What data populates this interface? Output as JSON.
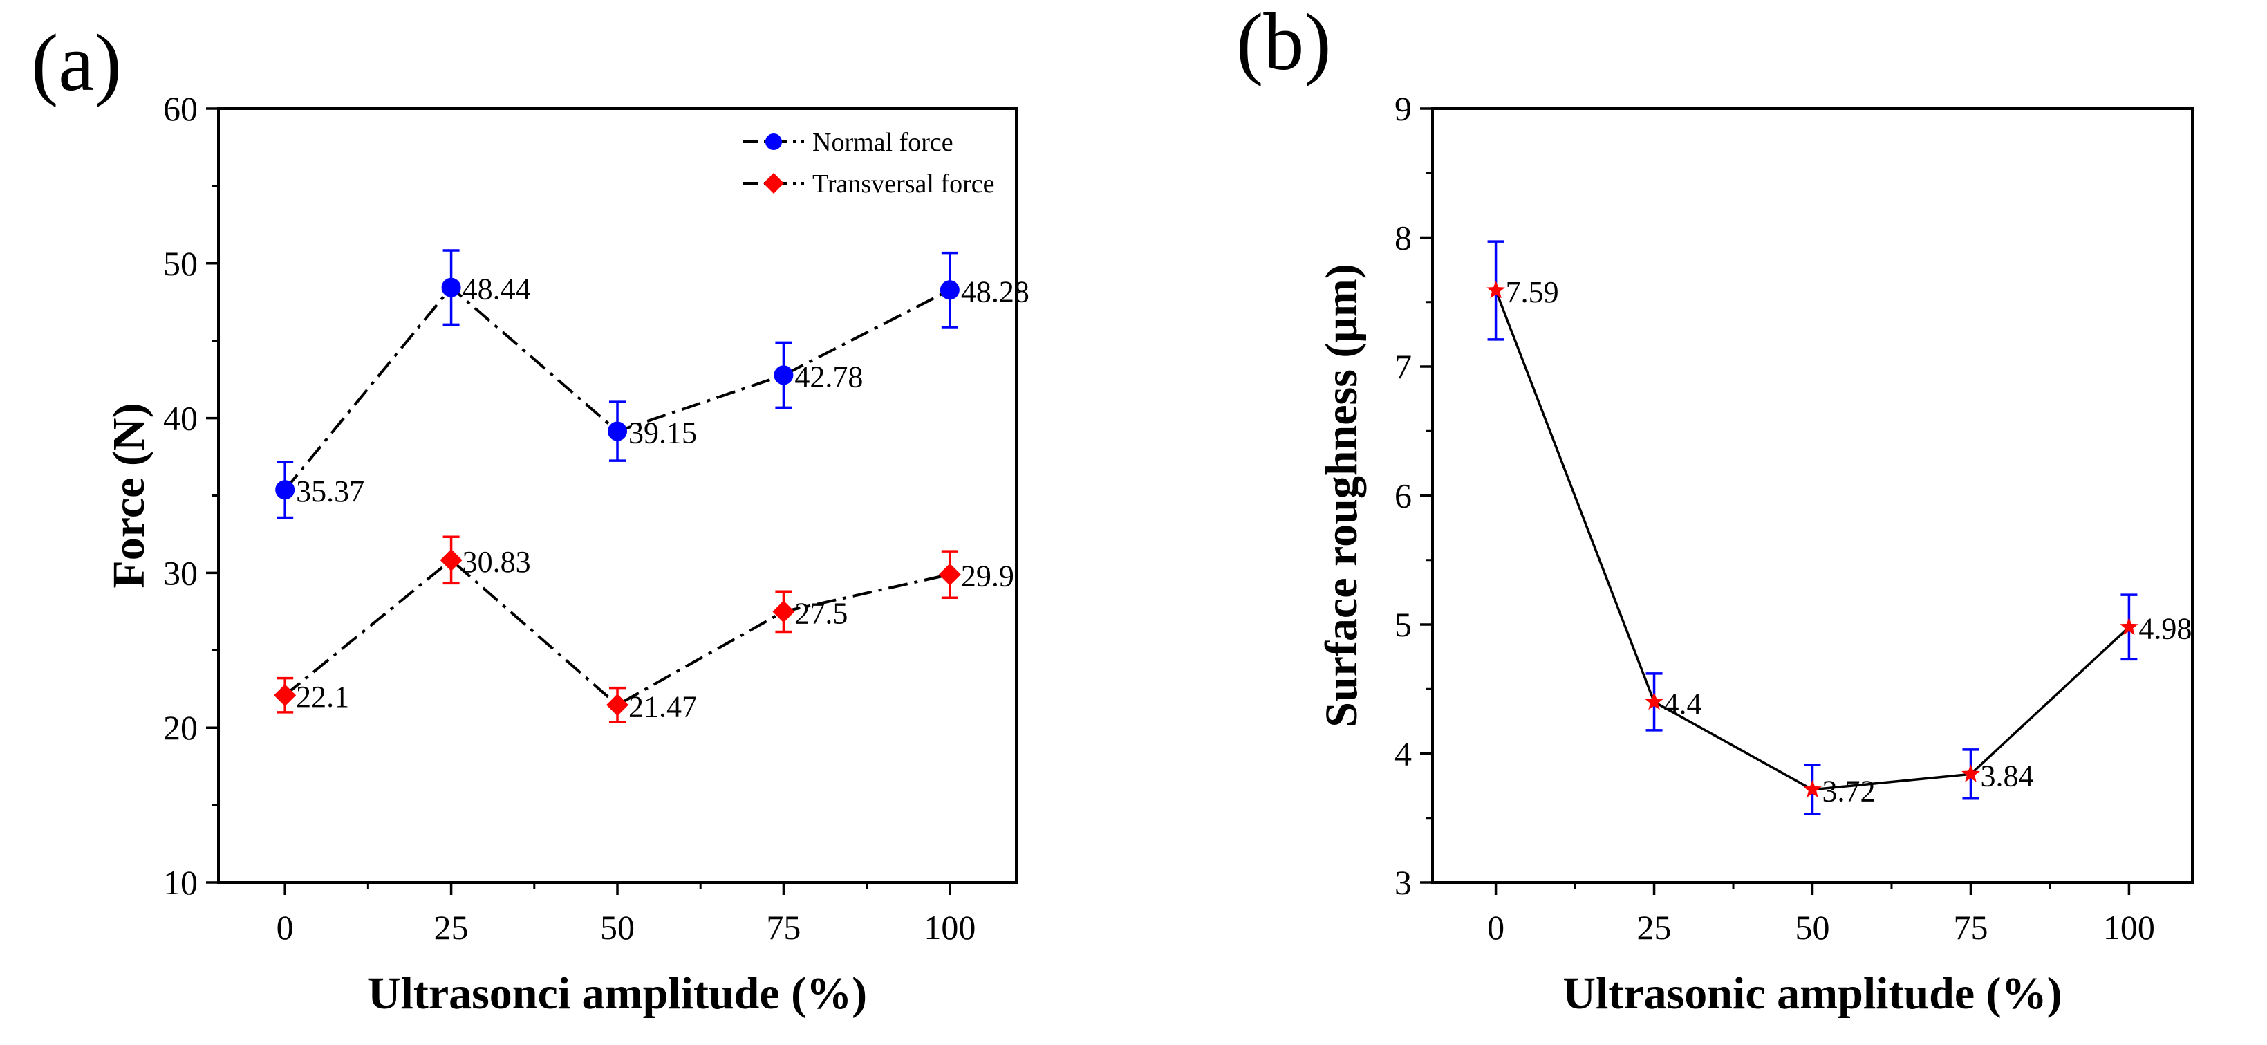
{
  "chart_data": [
    {
      "panel": "(a)",
      "type": "line",
      "xlabel": "Ultrasonci amplitude (%)",
      "ylabel": "Force (N)",
      "xlim": [
        -10,
        110
      ],
      "ylim": [
        10,
        60
      ],
      "x": [
        0,
        25,
        50,
        75,
        100
      ],
      "xticks": [
        0,
        25,
        50,
        75,
        100
      ],
      "yticks": [
        10,
        20,
        30,
        40,
        50,
        60
      ],
      "legend_position": "top-right",
      "series": [
        {
          "name": "Normal force",
          "color": "#0000ff",
          "marker": "circle",
          "values": [
            35.37,
            48.44,
            39.15,
            42.78,
            48.28
          ],
          "errors": [
            1.8,
            2.4,
            1.9,
            2.1,
            2.4
          ],
          "labels": [
            "35.37",
            "48.44",
            "39.15",
            "42.78",
            "48.28"
          ]
        },
        {
          "name": "Transversal force",
          "color": "#ff0000",
          "marker": "diamond",
          "values": [
            22.1,
            30.83,
            21.47,
            27.5,
            29.9
          ],
          "errors": [
            1.1,
            1.5,
            1.1,
            1.3,
            1.5
          ],
          "labels": [
            "22.1",
            "30.83",
            "21.47",
            "27.5",
            "29.9"
          ]
        }
      ]
    },
    {
      "panel": "(b)",
      "type": "line",
      "xlabel": "Ultrasonic amplitude (%)",
      "ylabel": "Surface roughness (μm)",
      "xlim": [
        -10,
        110
      ],
      "ylim": [
        3,
        9
      ],
      "x": [
        0,
        25,
        50,
        75,
        100
      ],
      "xticks": [
        0,
        25,
        50,
        75,
        100
      ],
      "yticks": [
        3,
        4,
        5,
        6,
        7,
        8,
        9
      ],
      "series": [
        {
          "name": "Surface roughness",
          "color": "#ff0000",
          "marker": "star",
          "line_color": "#000000",
          "error_color": "#0000ff",
          "values": [
            7.59,
            4.4,
            3.72,
            3.84,
            4.98
          ],
          "errors": [
            0.38,
            0.22,
            0.19,
            0.19,
            0.25
          ],
          "labels": [
            "7.59",
            "4.4",
            "3.72",
            "3.84",
            "4.98"
          ]
        }
      ]
    }
  ]
}
